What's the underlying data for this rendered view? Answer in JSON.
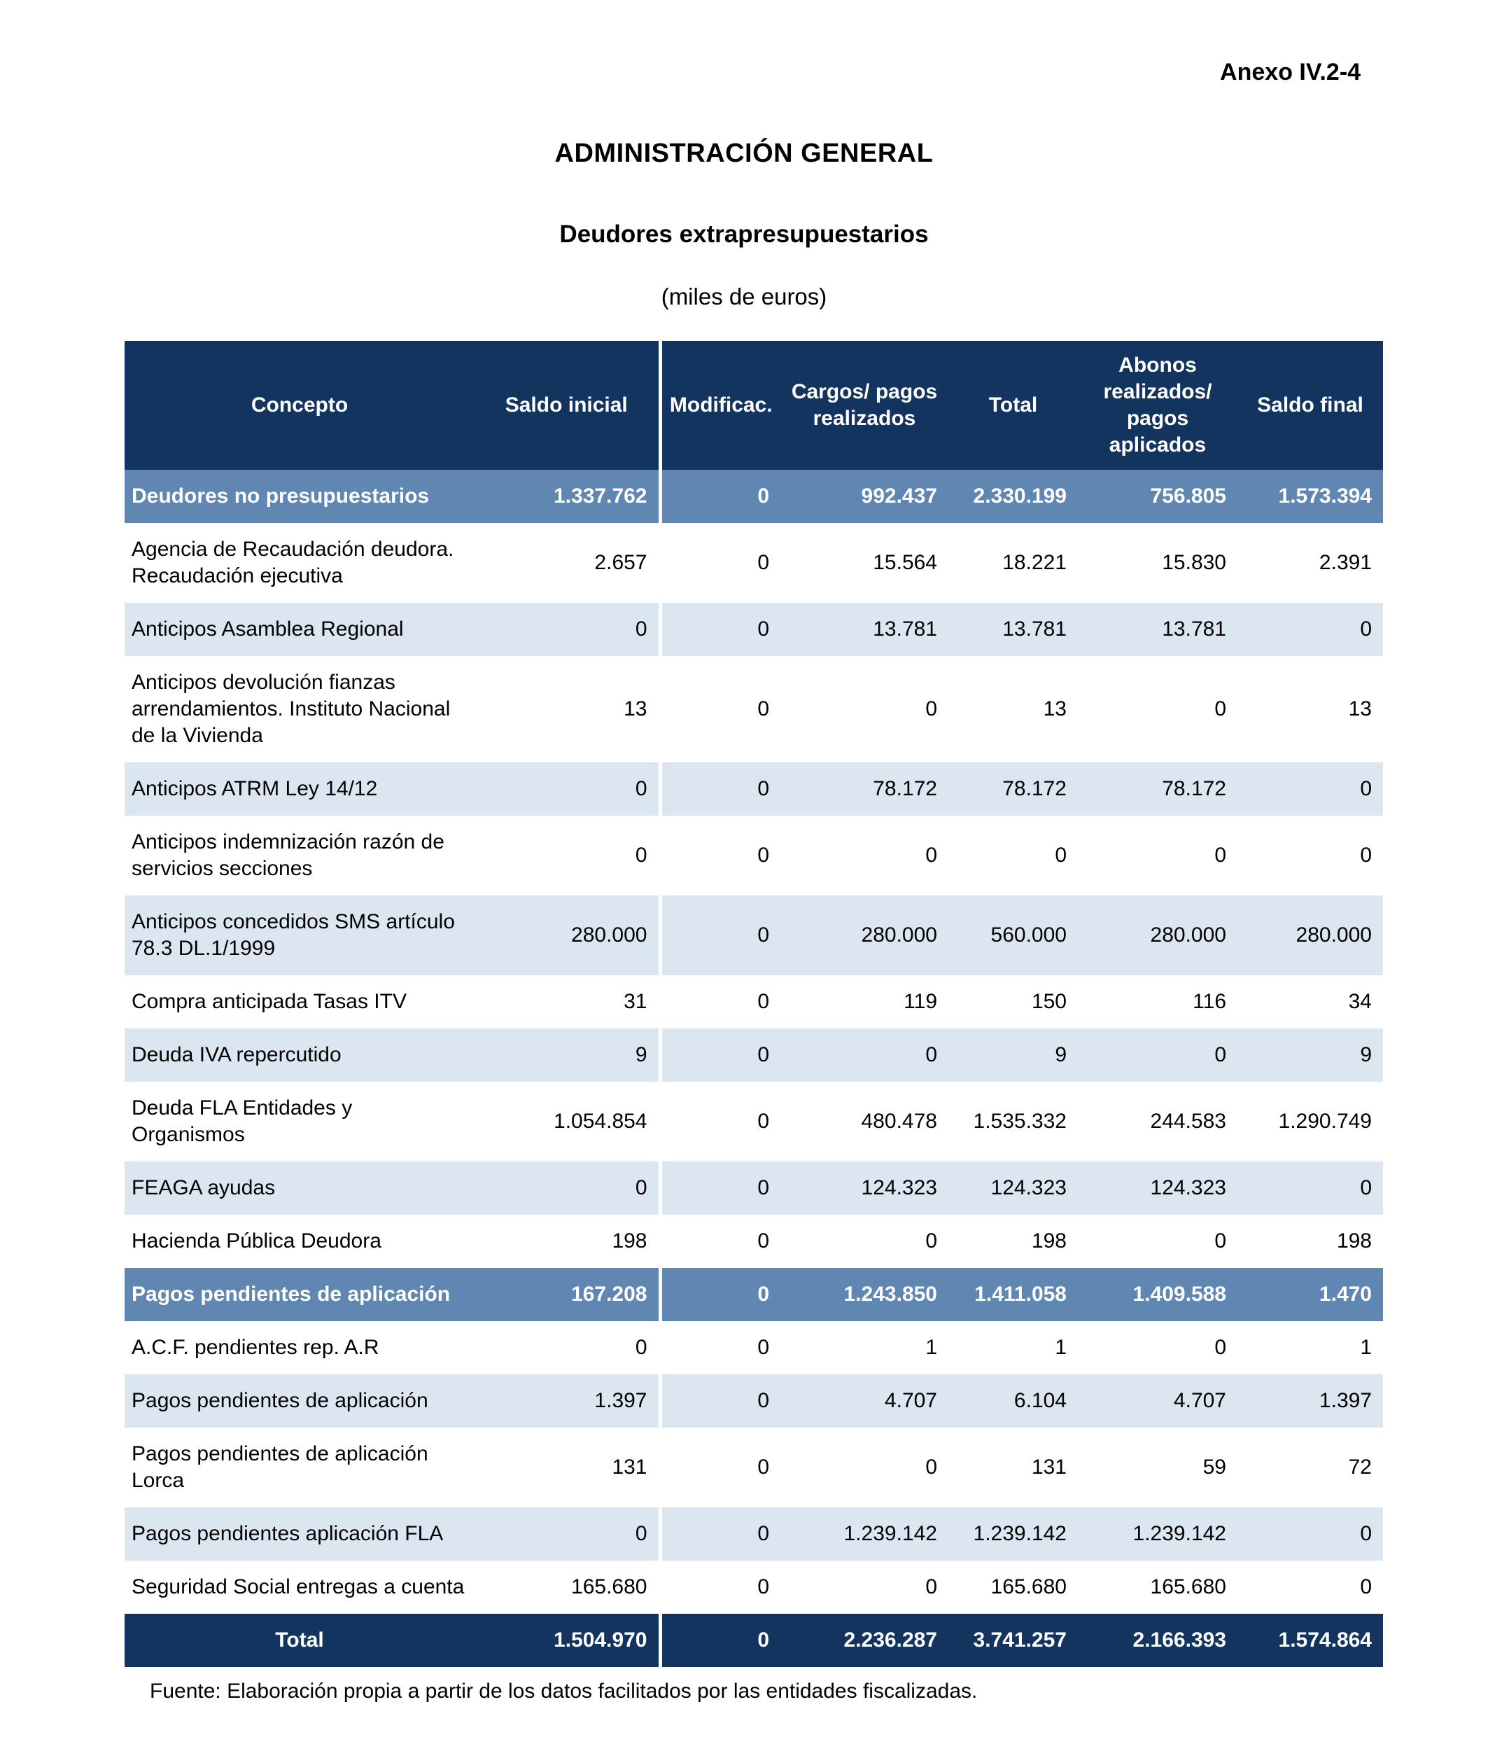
{
  "page": {
    "annex_label": "Anexo IV.2-4",
    "title": "ADMINISTRACIÓN GENERAL",
    "subtitle": "Deudores extrapresupuestarios",
    "units_note": "(miles de euros)",
    "source_note": "Fuente: Elaboración propia a partir de los datos facilitados por las entidades fiscalizadas."
  },
  "colors": {
    "header_navy": "#12345F",
    "section_blue": "#6086B2",
    "row_alt_blue": "#DCE6F1",
    "header_text": "#FFFFFF",
    "body_text": "#000000"
  },
  "table": {
    "column_keys": [
      "concepto",
      "saldo_inicial",
      "modificac",
      "cargos_pagos_realizados",
      "total",
      "abonos_pagos_aplicados",
      "saldo_final"
    ],
    "columns": [
      "Concepto",
      "Saldo inicial",
      "Modificac.",
      "Cargos/ pagos realizados",
      "Total",
      "Abonos realizados/ pagos aplicados",
      "Saldo final"
    ],
    "rows": [
      {
        "concepto": "Deudores no presupuestarios",
        "values": [
          "1.337.762",
          "0",
          "992.437",
          "2.330.199",
          "756.805",
          "1.573.394"
        ],
        "style": "section"
      },
      {
        "concepto": "Agencia de Recaudación deudora. Recaudación ejecutiva",
        "values": [
          "2.657",
          "0",
          "15.564",
          "18.221",
          "15.830",
          "2.391"
        ],
        "style": "item"
      },
      {
        "concepto": "Anticipos Asamblea Regional",
        "values": [
          "0",
          "0",
          "13.781",
          "13.781",
          "13.781",
          "0"
        ],
        "style": "item-alt"
      },
      {
        "concepto": "Anticipos devolución fianzas arrendamientos. Instituto Nacional de la Vivienda",
        "values": [
          "13",
          "0",
          "0",
          "13",
          "0",
          "13"
        ],
        "style": "item"
      },
      {
        "concepto": "Anticipos ATRM Ley 14/12",
        "values": [
          "0",
          "0",
          "78.172",
          "78.172",
          "78.172",
          "0"
        ],
        "style": "item-alt"
      },
      {
        "concepto": "Anticipos indemnización razón de servicios secciones",
        "values": [
          "0",
          "0",
          "0",
          "0",
          "0",
          "0"
        ],
        "style": "item"
      },
      {
        "concepto": "Anticipos concedidos SMS artículo 78.3 DL.1/1999",
        "values": [
          "280.000",
          "0",
          "280.000",
          "560.000",
          "280.000",
          "280.000"
        ],
        "style": "item-alt"
      },
      {
        "concepto": "Compra anticipada Tasas ITV",
        "values": [
          "31",
          "0",
          "119",
          "150",
          "116",
          "34"
        ],
        "style": "item"
      },
      {
        "concepto": "Deuda IVA repercutido",
        "values": [
          "9",
          "0",
          "0",
          "9",
          "0",
          "9"
        ],
        "style": "item-alt"
      },
      {
        "concepto": "Deuda FLA Entidades y Organismos",
        "values": [
          "1.054.854",
          "0",
          "480.478",
          "1.535.332",
          "244.583",
          "1.290.749"
        ],
        "style": "item"
      },
      {
        "concepto": "FEAGA ayudas",
        "values": [
          "0",
          "0",
          "124.323",
          "124.323",
          "124.323",
          "0"
        ],
        "style": "item-alt"
      },
      {
        "concepto": "Hacienda Pública Deudora",
        "values": [
          "198",
          "0",
          "0",
          "198",
          "0",
          "198"
        ],
        "style": "item"
      },
      {
        "concepto": "Pagos pendientes de aplicación",
        "values": [
          "167.208",
          "0",
          "1.243.850",
          "1.411.058",
          "1.409.588",
          "1.470"
        ],
        "style": "section"
      },
      {
        "concepto": "A.C.F. pendientes rep. A.R",
        "values": [
          "0",
          "0",
          "1",
          "1",
          "0",
          "1"
        ],
        "style": "item"
      },
      {
        "concepto": "Pagos pendientes de aplicación",
        "values": [
          "1.397",
          "0",
          "4.707",
          "6.104",
          "4.707",
          "1.397"
        ],
        "style": "item-alt"
      },
      {
        "concepto": "Pagos pendientes de aplicación Lorca",
        "values": [
          "131",
          "0",
          "0",
          "131",
          "59",
          "72"
        ],
        "style": "item"
      },
      {
        "concepto": "Pagos pendientes aplicación FLA",
        "values": [
          "0",
          "0",
          "1.239.142",
          "1.239.142",
          "1.239.142",
          "0"
        ],
        "style": "item-alt"
      },
      {
        "concepto": "Seguridad Social entregas a cuenta",
        "values": [
          "165.680",
          "0",
          "0",
          "165.680",
          "165.680",
          "0"
        ],
        "style": "item"
      },
      {
        "concepto": "Total",
        "values": [
          "1.504.970",
          "0",
          "2.236.287",
          "3.741.257",
          "2.166.393",
          "1.574.864"
        ],
        "style": "total"
      }
    ]
  }
}
